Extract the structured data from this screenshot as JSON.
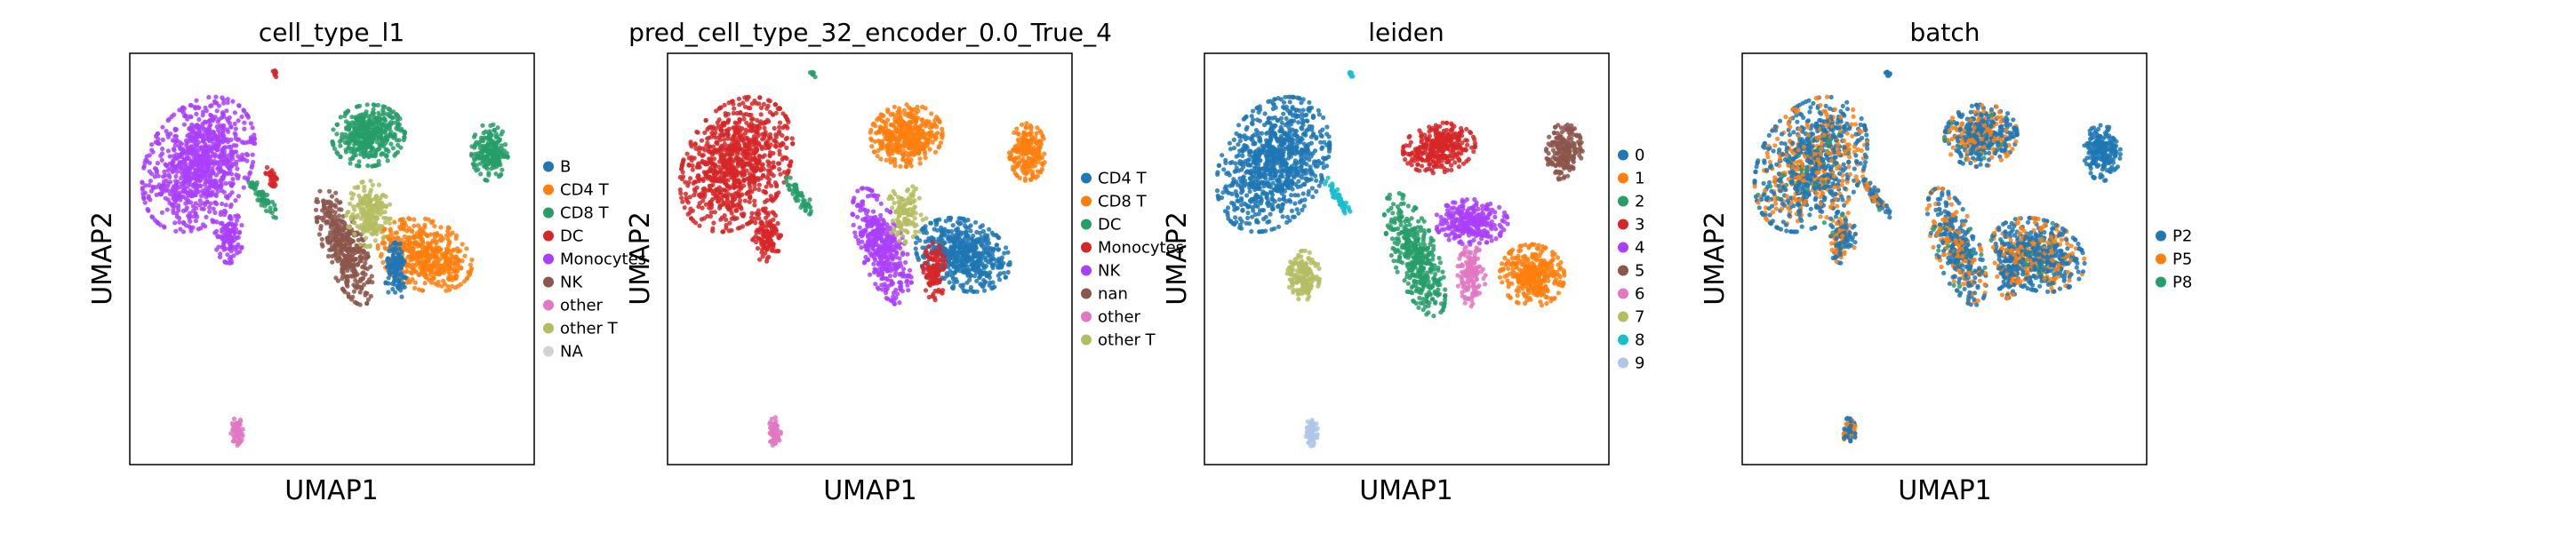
{
  "chart_data": [
    {
      "type": "scatter",
      "title": "cell_type_l1",
      "xlabel": "UMAP1",
      "ylabel": "UMAP2",
      "grid": false,
      "legend_position": "right",
      "legend": [
        {
          "label": "B",
          "color": "#1f77b4"
        },
        {
          "label": "CD4 T",
          "color": "#ff7f0e"
        },
        {
          "label": "CD8 T",
          "color": "#279e68"
        },
        {
          "label": "DC",
          "color": "#d62728"
        },
        {
          "label": "Monocytes",
          "color": "#aa40fc"
        },
        {
          "label": "NK",
          "color": "#8c564b"
        },
        {
          "label": "other",
          "color": "#e377c2"
        },
        {
          "label": "other T",
          "color": "#b5bd61"
        },
        {
          "label": "NA",
          "color": "#d3d3d3"
        }
      ],
      "clusters": [
        {
          "cx": 1.7,
          "cy": 7.3,
          "rx": 1.25,
          "ry": 1.75,
          "rot": -30,
          "color": "#aa40fc",
          "n": 900
        },
        {
          "cx": 2.45,
          "cy": 5.55,
          "rx": 0.35,
          "ry": 0.65,
          "rot": 0,
          "color": "#aa40fc",
          "n": 120
        },
        {
          "cx": 3.3,
          "cy": 6.5,
          "rx": 0.15,
          "ry": 0.6,
          "rot": 35,
          "color": "#279e68",
          "n": 60
        },
        {
          "cx": 3.5,
          "cy": 7.0,
          "rx": 0.12,
          "ry": 0.25,
          "rot": 20,
          "color": "#d62728",
          "n": 30
        },
        {
          "cx": 3.6,
          "cy": 9.5,
          "rx": 0.06,
          "ry": 0.1,
          "rot": 30,
          "color": "#d62728",
          "n": 8
        },
        {
          "cx": 5.9,
          "cy": 8.0,
          "rx": 0.9,
          "ry": 0.75,
          "rot": 10,
          "color": "#279e68",
          "n": 420
        },
        {
          "cx": 8.9,
          "cy": 7.6,
          "rx": 0.45,
          "ry": 0.7,
          "rot": 0,
          "color": "#279e68",
          "n": 200
        },
        {
          "cx": 5.3,
          "cy": 5.3,
          "rx": 0.5,
          "ry": 1.5,
          "rot": 20,
          "color": "#8c564b",
          "n": 380
        },
        {
          "cx": 5.9,
          "cy": 6.1,
          "rx": 0.55,
          "ry": 0.8,
          "rot": 0,
          "color": "#b5bd61",
          "n": 200
        },
        {
          "cx": 7.3,
          "cy": 5.1,
          "rx": 1.2,
          "ry": 0.85,
          "rot": -20,
          "color": "#ff7f0e",
          "n": 480
        },
        {
          "cx": 6.6,
          "cy": 4.7,
          "rx": 0.3,
          "ry": 0.7,
          "rot": 0,
          "color": "#1f77b4",
          "n": 120
        },
        {
          "cx": 2.65,
          "cy": 0.8,
          "rx": 0.15,
          "ry": 0.35,
          "rot": 0,
          "color": "#e377c2",
          "n": 70
        }
      ]
    },
    {
      "type": "scatter",
      "title": "pred_cell_type_32_encoder_0.0_True_4",
      "xlabel": "UMAP1",
      "ylabel": "UMAP2",
      "grid": false,
      "legend_position": "right",
      "legend": [
        {
          "label": "CD4 T",
          "color": "#1f77b4"
        },
        {
          "label": "CD8 T",
          "color": "#ff7f0e"
        },
        {
          "label": "DC",
          "color": "#279e68"
        },
        {
          "label": "Monocytes",
          "color": "#d62728"
        },
        {
          "label": "NK",
          "color": "#aa40fc"
        },
        {
          "label": "nan",
          "color": "#8c564b"
        },
        {
          "label": "other",
          "color": "#e377c2"
        },
        {
          "label": "other T",
          "color": "#b5bd61"
        }
      ],
      "clusters": [
        {
          "cx": 1.7,
          "cy": 7.3,
          "rx": 1.25,
          "ry": 1.75,
          "rot": -30,
          "color": "#d62728",
          "n": 900
        },
        {
          "cx": 2.45,
          "cy": 5.55,
          "rx": 0.35,
          "ry": 0.65,
          "rot": 0,
          "color": "#d62728",
          "n": 120
        },
        {
          "cx": 3.3,
          "cy": 6.5,
          "rx": 0.15,
          "ry": 0.6,
          "rot": 35,
          "color": "#279e68",
          "n": 60
        },
        {
          "cx": 3.6,
          "cy": 9.5,
          "rx": 0.06,
          "ry": 0.1,
          "rot": 30,
          "color": "#279e68",
          "n": 8
        },
        {
          "cx": 5.9,
          "cy": 8.0,
          "rx": 0.9,
          "ry": 0.75,
          "rot": 10,
          "color": "#ff7f0e",
          "n": 420
        },
        {
          "cx": 8.9,
          "cy": 7.6,
          "rx": 0.45,
          "ry": 0.7,
          "rot": 0,
          "color": "#ff7f0e",
          "n": 200
        },
        {
          "cx": 5.3,
          "cy": 5.3,
          "rx": 0.55,
          "ry": 1.5,
          "rot": 20,
          "color": "#aa40fc",
          "n": 400
        },
        {
          "cx": 5.9,
          "cy": 6.1,
          "rx": 0.5,
          "ry": 0.7,
          "rot": 0,
          "color": "#b5bd61",
          "n": 120
        },
        {
          "cx": 7.3,
          "cy": 5.1,
          "rx": 1.2,
          "ry": 0.85,
          "rot": -20,
          "color": "#1f77b4",
          "n": 560
        },
        {
          "cx": 6.6,
          "cy": 4.7,
          "rx": 0.3,
          "ry": 0.7,
          "rot": 0,
          "color": "#d62728",
          "n": 110
        },
        {
          "cx": 2.65,
          "cy": 0.8,
          "rx": 0.15,
          "ry": 0.35,
          "rot": 0,
          "color": "#e377c2",
          "n": 70
        }
      ]
    },
    {
      "type": "scatter",
      "title": "leiden",
      "xlabel": "UMAP1",
      "ylabel": "UMAP2",
      "grid": false,
      "legend_position": "right",
      "legend": [
        {
          "label": "0",
          "color": "#1f77b4"
        },
        {
          "label": "1",
          "color": "#ff7f0e"
        },
        {
          "label": "2",
          "color": "#279e68"
        },
        {
          "label": "3",
          "color": "#d62728"
        },
        {
          "label": "4",
          "color": "#aa40fc"
        },
        {
          "label": "5",
          "color": "#8c564b"
        },
        {
          "label": "6",
          "color": "#e377c2"
        },
        {
          "label": "7",
          "color": "#b5bd61"
        },
        {
          "label": "8",
          "color": "#17becf"
        },
        {
          "label": "9",
          "color": "#aec7e8"
        }
      ],
      "clusters": [
        {
          "cx": 1.7,
          "cy": 7.3,
          "rx": 1.25,
          "ry": 1.75,
          "rot": -30,
          "color": "#1f77b4",
          "n": 900
        },
        {
          "cx": 2.45,
          "cy": 4.6,
          "rx": 0.4,
          "ry": 0.6,
          "rot": 0,
          "color": "#b5bd61",
          "n": 150
        },
        {
          "cx": 3.3,
          "cy": 6.5,
          "rx": 0.15,
          "ry": 0.6,
          "rot": 35,
          "color": "#17becf",
          "n": 60
        },
        {
          "cx": 3.6,
          "cy": 9.5,
          "rx": 0.06,
          "ry": 0.1,
          "rot": 30,
          "color": "#17becf",
          "n": 8
        },
        {
          "cx": 5.8,
          "cy": 7.7,
          "rx": 0.9,
          "ry": 0.6,
          "rot": 10,
          "color": "#d62728",
          "n": 320
        },
        {
          "cx": 8.9,
          "cy": 7.6,
          "rx": 0.45,
          "ry": 0.7,
          "rot": 0,
          "color": "#8c564b",
          "n": 200
        },
        {
          "cx": 5.2,
          "cy": 5.1,
          "rx": 0.55,
          "ry": 1.6,
          "rot": 20,
          "color": "#279e68",
          "n": 400
        },
        {
          "cx": 6.6,
          "cy": 5.9,
          "rx": 0.9,
          "ry": 0.55,
          "rot": 0,
          "color": "#aa40fc",
          "n": 280
        },
        {
          "cx": 8.1,
          "cy": 4.6,
          "rx": 0.8,
          "ry": 0.75,
          "rot": -15,
          "color": "#ff7f0e",
          "n": 330
        },
        {
          "cx": 6.6,
          "cy": 4.6,
          "rx": 0.35,
          "ry": 0.75,
          "rot": 0,
          "color": "#e377c2",
          "n": 150
        },
        {
          "cx": 2.65,
          "cy": 0.8,
          "rx": 0.15,
          "ry": 0.35,
          "rot": 0,
          "color": "#aec7e8",
          "n": 70
        }
      ]
    },
    {
      "type": "scatter",
      "title": "batch",
      "xlabel": "UMAP1",
      "ylabel": "UMAP2",
      "grid": false,
      "legend_position": "right",
      "legend": [
        {
          "label": "P2",
          "color": "#1f77b4"
        },
        {
          "label": "P5",
          "color": "#ff7f0e"
        },
        {
          "label": "P8",
          "color": "#279e68"
        }
      ],
      "mix": [
        0.62,
        0.34,
        0.04
      ],
      "clusters": [
        {
          "cx": 1.7,
          "cy": 7.3,
          "rx": 1.25,
          "ry": 1.75,
          "rot": -30,
          "color": "mix",
          "n": 900
        },
        {
          "cx": 2.45,
          "cy": 5.55,
          "rx": 0.35,
          "ry": 0.65,
          "rot": 0,
          "color": "mix",
          "n": 120
        },
        {
          "cx": 3.3,
          "cy": 6.5,
          "rx": 0.15,
          "ry": 0.6,
          "rot": 35,
          "color": "mix",
          "n": 60
        },
        {
          "cx": 3.6,
          "cy": 9.5,
          "rx": 0.06,
          "ry": 0.1,
          "rot": 30,
          "color": "#1f77b4",
          "n": 8
        },
        {
          "cx": 5.9,
          "cy": 8.0,
          "rx": 0.9,
          "ry": 0.75,
          "rot": 10,
          "color": "mix",
          "n": 420
        },
        {
          "cx": 8.9,
          "cy": 7.6,
          "rx": 0.45,
          "ry": 0.7,
          "rot": 0,
          "color": "#1f77b4",
          "n": 200
        },
        {
          "cx": 5.3,
          "cy": 5.3,
          "rx": 0.55,
          "ry": 1.5,
          "rot": 20,
          "color": "mix",
          "n": 380
        },
        {
          "cx": 7.3,
          "cy": 5.1,
          "rx": 1.2,
          "ry": 0.85,
          "rot": -20,
          "color": "mix",
          "n": 560
        },
        {
          "cx": 6.6,
          "cy": 4.7,
          "rx": 0.3,
          "ry": 0.7,
          "rot": 0,
          "color": "mix",
          "n": 110
        },
        {
          "cx": 2.65,
          "cy": 0.8,
          "rx": 0.15,
          "ry": 0.35,
          "rot": 0,
          "color": "mix",
          "n": 70
        }
      ]
    }
  ]
}
